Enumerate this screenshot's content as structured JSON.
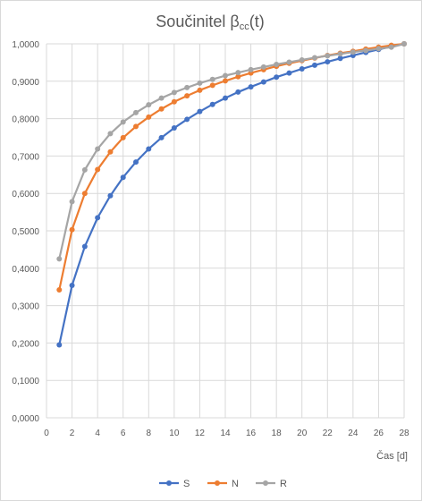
{
  "chart_data": {
    "type": "line",
    "title_main": "Součinitel β",
    "title_sub": "cc",
    "title_tail": "(t)",
    "xlabel": "Čas [d]",
    "ylabel": "",
    "xlim": [
      0,
      28
    ],
    "ylim": [
      0,
      1
    ],
    "x_ticks": [
      "0",
      "2",
      "4",
      "6",
      "8",
      "10",
      "12",
      "14",
      "16",
      "18",
      "20",
      "22",
      "24",
      "26",
      "28"
    ],
    "y_ticks": [
      "0,0000",
      "0,1000",
      "0,2000",
      "0,3000",
      "0,4000",
      "0,5000",
      "0,6000",
      "0,7000",
      "0,8000",
      "0,9000",
      "1,0000"
    ],
    "grid": true,
    "legend_position": "bottom",
    "x": [
      1,
      2,
      3,
      4,
      5,
      6,
      7,
      8,
      9,
      10,
      11,
      12,
      13,
      14,
      15,
      16,
      17,
      18,
      19,
      20,
      21,
      22,
      23,
      24,
      25,
      26,
      27,
      28
    ],
    "series": [
      {
        "name": "S",
        "color": "#4472c4",
        "values": [
          0.195,
          0.354,
          0.458,
          0.535,
          0.594,
          0.643,
          0.684,
          0.719,
          0.749,
          0.775,
          0.798,
          0.819,
          0.838,
          0.855,
          0.871,
          0.885,
          0.898,
          0.911,
          0.922,
          0.933,
          0.943,
          0.952,
          0.961,
          0.969,
          0.977,
          0.985,
          0.993,
          1.0
        ]
      },
      {
        "name": "N",
        "color": "#ed7d31",
        "values": [
          0.342,
          0.503,
          0.6,
          0.664,
          0.711,
          0.749,
          0.779,
          0.804,
          0.826,
          0.845,
          0.861,
          0.876,
          0.889,
          0.901,
          0.912,
          0.922,
          0.931,
          0.94,
          0.948,
          0.955,
          0.962,
          0.969,
          0.975,
          0.98,
          0.986,
          0.991,
          0.996,
          1.0
        ]
      },
      {
        "name": "R",
        "color": "#a5a5a5",
        "values": [
          0.425,
          0.578,
          0.663,
          0.719,
          0.76,
          0.791,
          0.816,
          0.837,
          0.855,
          0.87,
          0.883,
          0.895,
          0.905,
          0.915,
          0.923,
          0.931,
          0.938,
          0.945,
          0.951,
          0.957,
          0.963,
          0.968,
          0.973,
          0.978,
          0.982,
          0.987,
          0.991,
          1.0
        ]
      }
    ]
  }
}
